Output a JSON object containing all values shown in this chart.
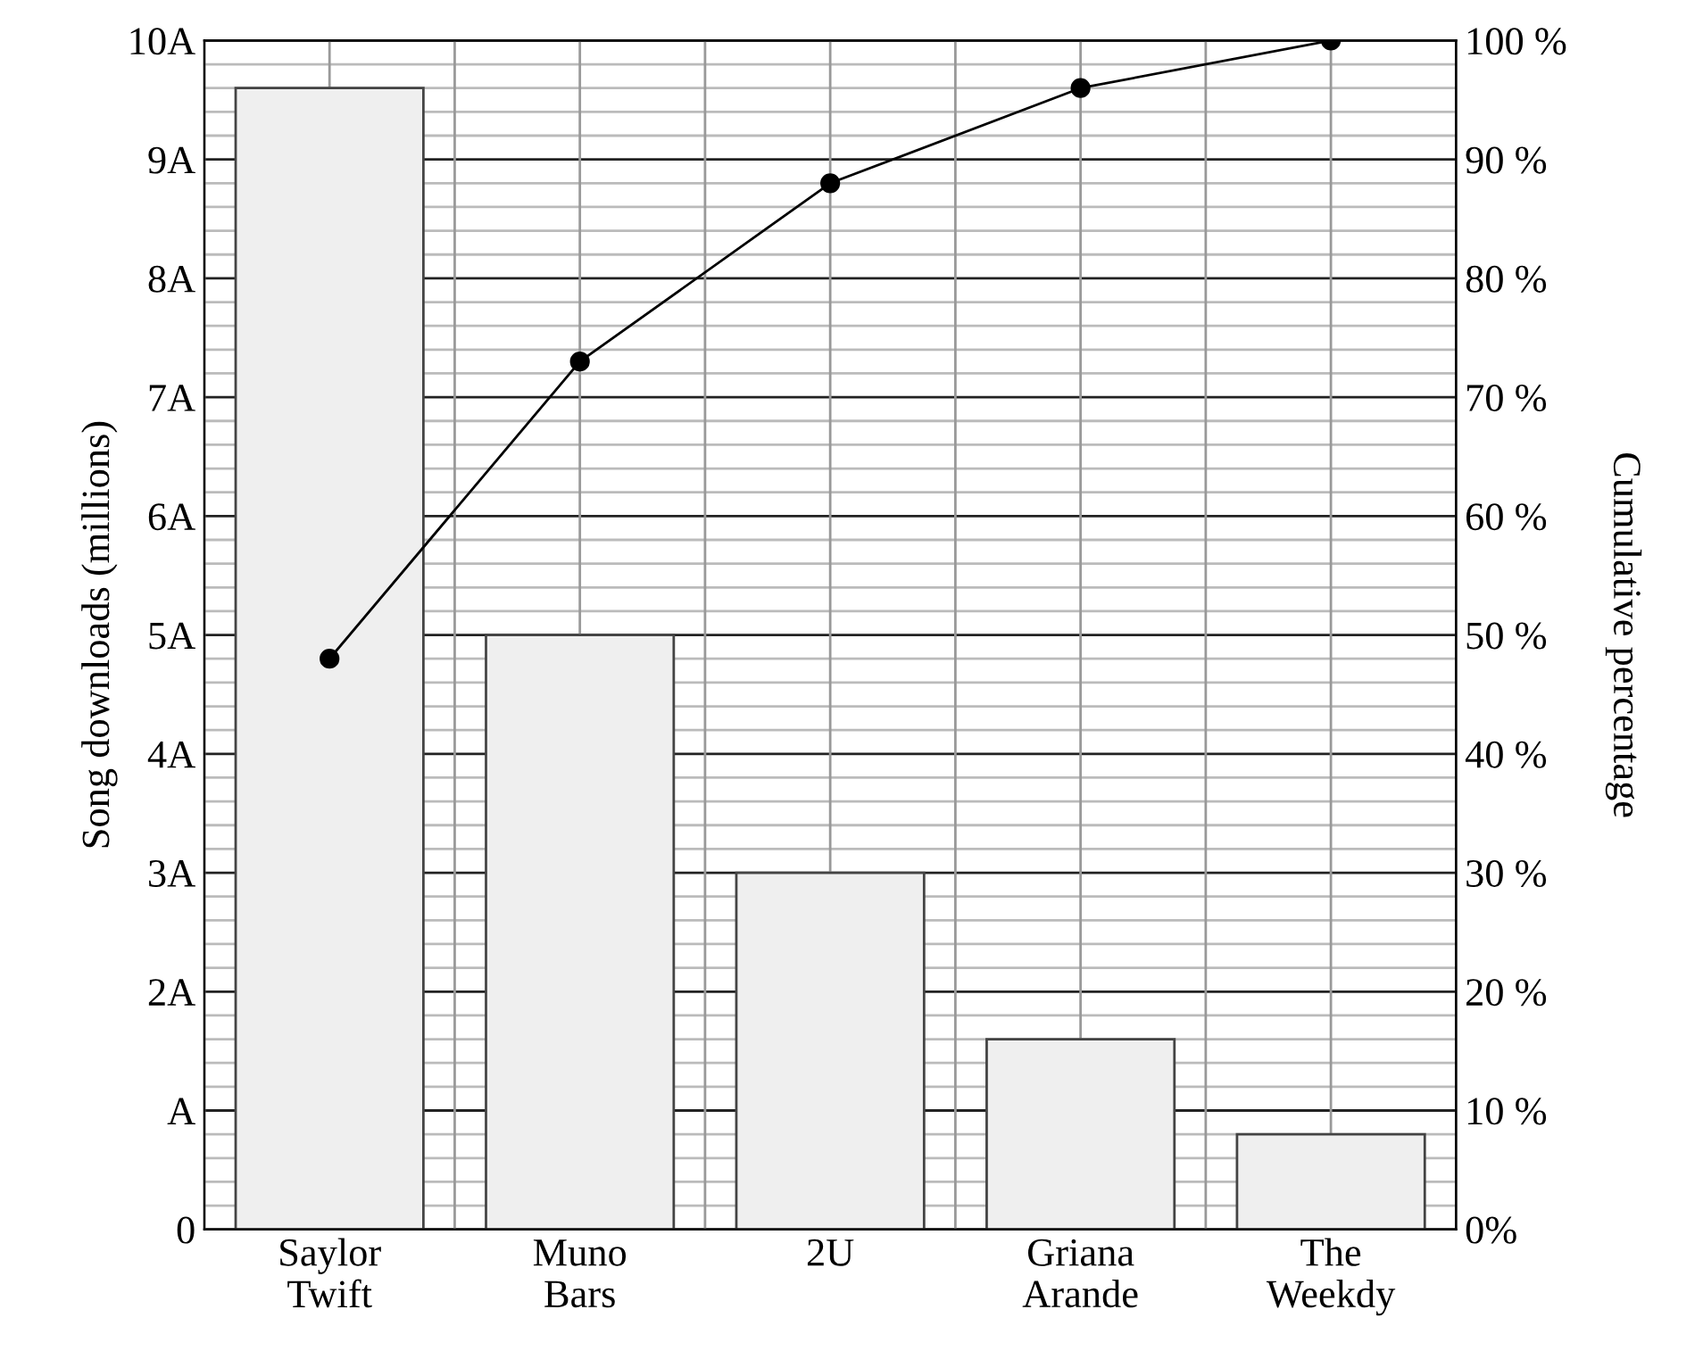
{
  "chart_data": {
    "type": "bar",
    "categories": [
      "Saylor\nTwift",
      "Muno\nBars",
      "2U",
      "Griana\nArande",
      "The\nWeekdy"
    ],
    "series": [
      {
        "color": "#efefef",
        "values": [
          9.6,
          5.0,
          3.0,
          1.6,
          0.8
        ]
      },
      {
        "type": "line",
        "axis": "y2",
        "color": "#000000",
        "marker": "circle",
        "values": [
          48,
          73,
          88,
          96,
          100
        ]
      }
    ],
    "ylabel": "Song downloads (millions)",
    "y2label": "Cumulative percentage",
    "ylim": [
      0,
      10
    ],
    "yticks": [
      0,
      {
        "value": 1,
        "label": "A"
      },
      {
        "value": 2,
        "label": "2A"
      },
      {
        "value": 3,
        "label": "3A"
      },
      {
        "value": 4,
        "label": "4A"
      },
      {
        "value": 5,
        "label": "5A"
      },
      {
        "value": 6,
        "label": "6A"
      },
      {
        "value": 7,
        "label": "7A"
      },
      {
        "value": 8,
        "label": "8A"
      },
      {
        "value": 9,
        "label": "9A"
      },
      {
        "value": 10,
        "label": "10A"
      }
    ],
    "y2lim": [
      0,
      100
    ],
    "y2ticks": [
      {
        "value": 0,
        "label": "0%"
      },
      {
        "value": 10,
        "label": "10 %"
      },
      {
        "value": 20,
        "label": "20 %"
      },
      {
        "value": 30,
        "label": "30 %"
      },
      {
        "value": 40,
        "label": "40 %"
      },
      {
        "value": 50,
        "label": "50 %"
      },
      {
        "value": 60,
        "label": "60 %"
      },
      {
        "value": 70,
        "label": "70 %"
      },
      {
        "value": 80,
        "label": "80 %"
      },
      {
        "value": 90,
        "label": "90 %"
      },
      {
        "value": 100,
        "label": "100 %"
      }
    ],
    "grid": true
  }
}
